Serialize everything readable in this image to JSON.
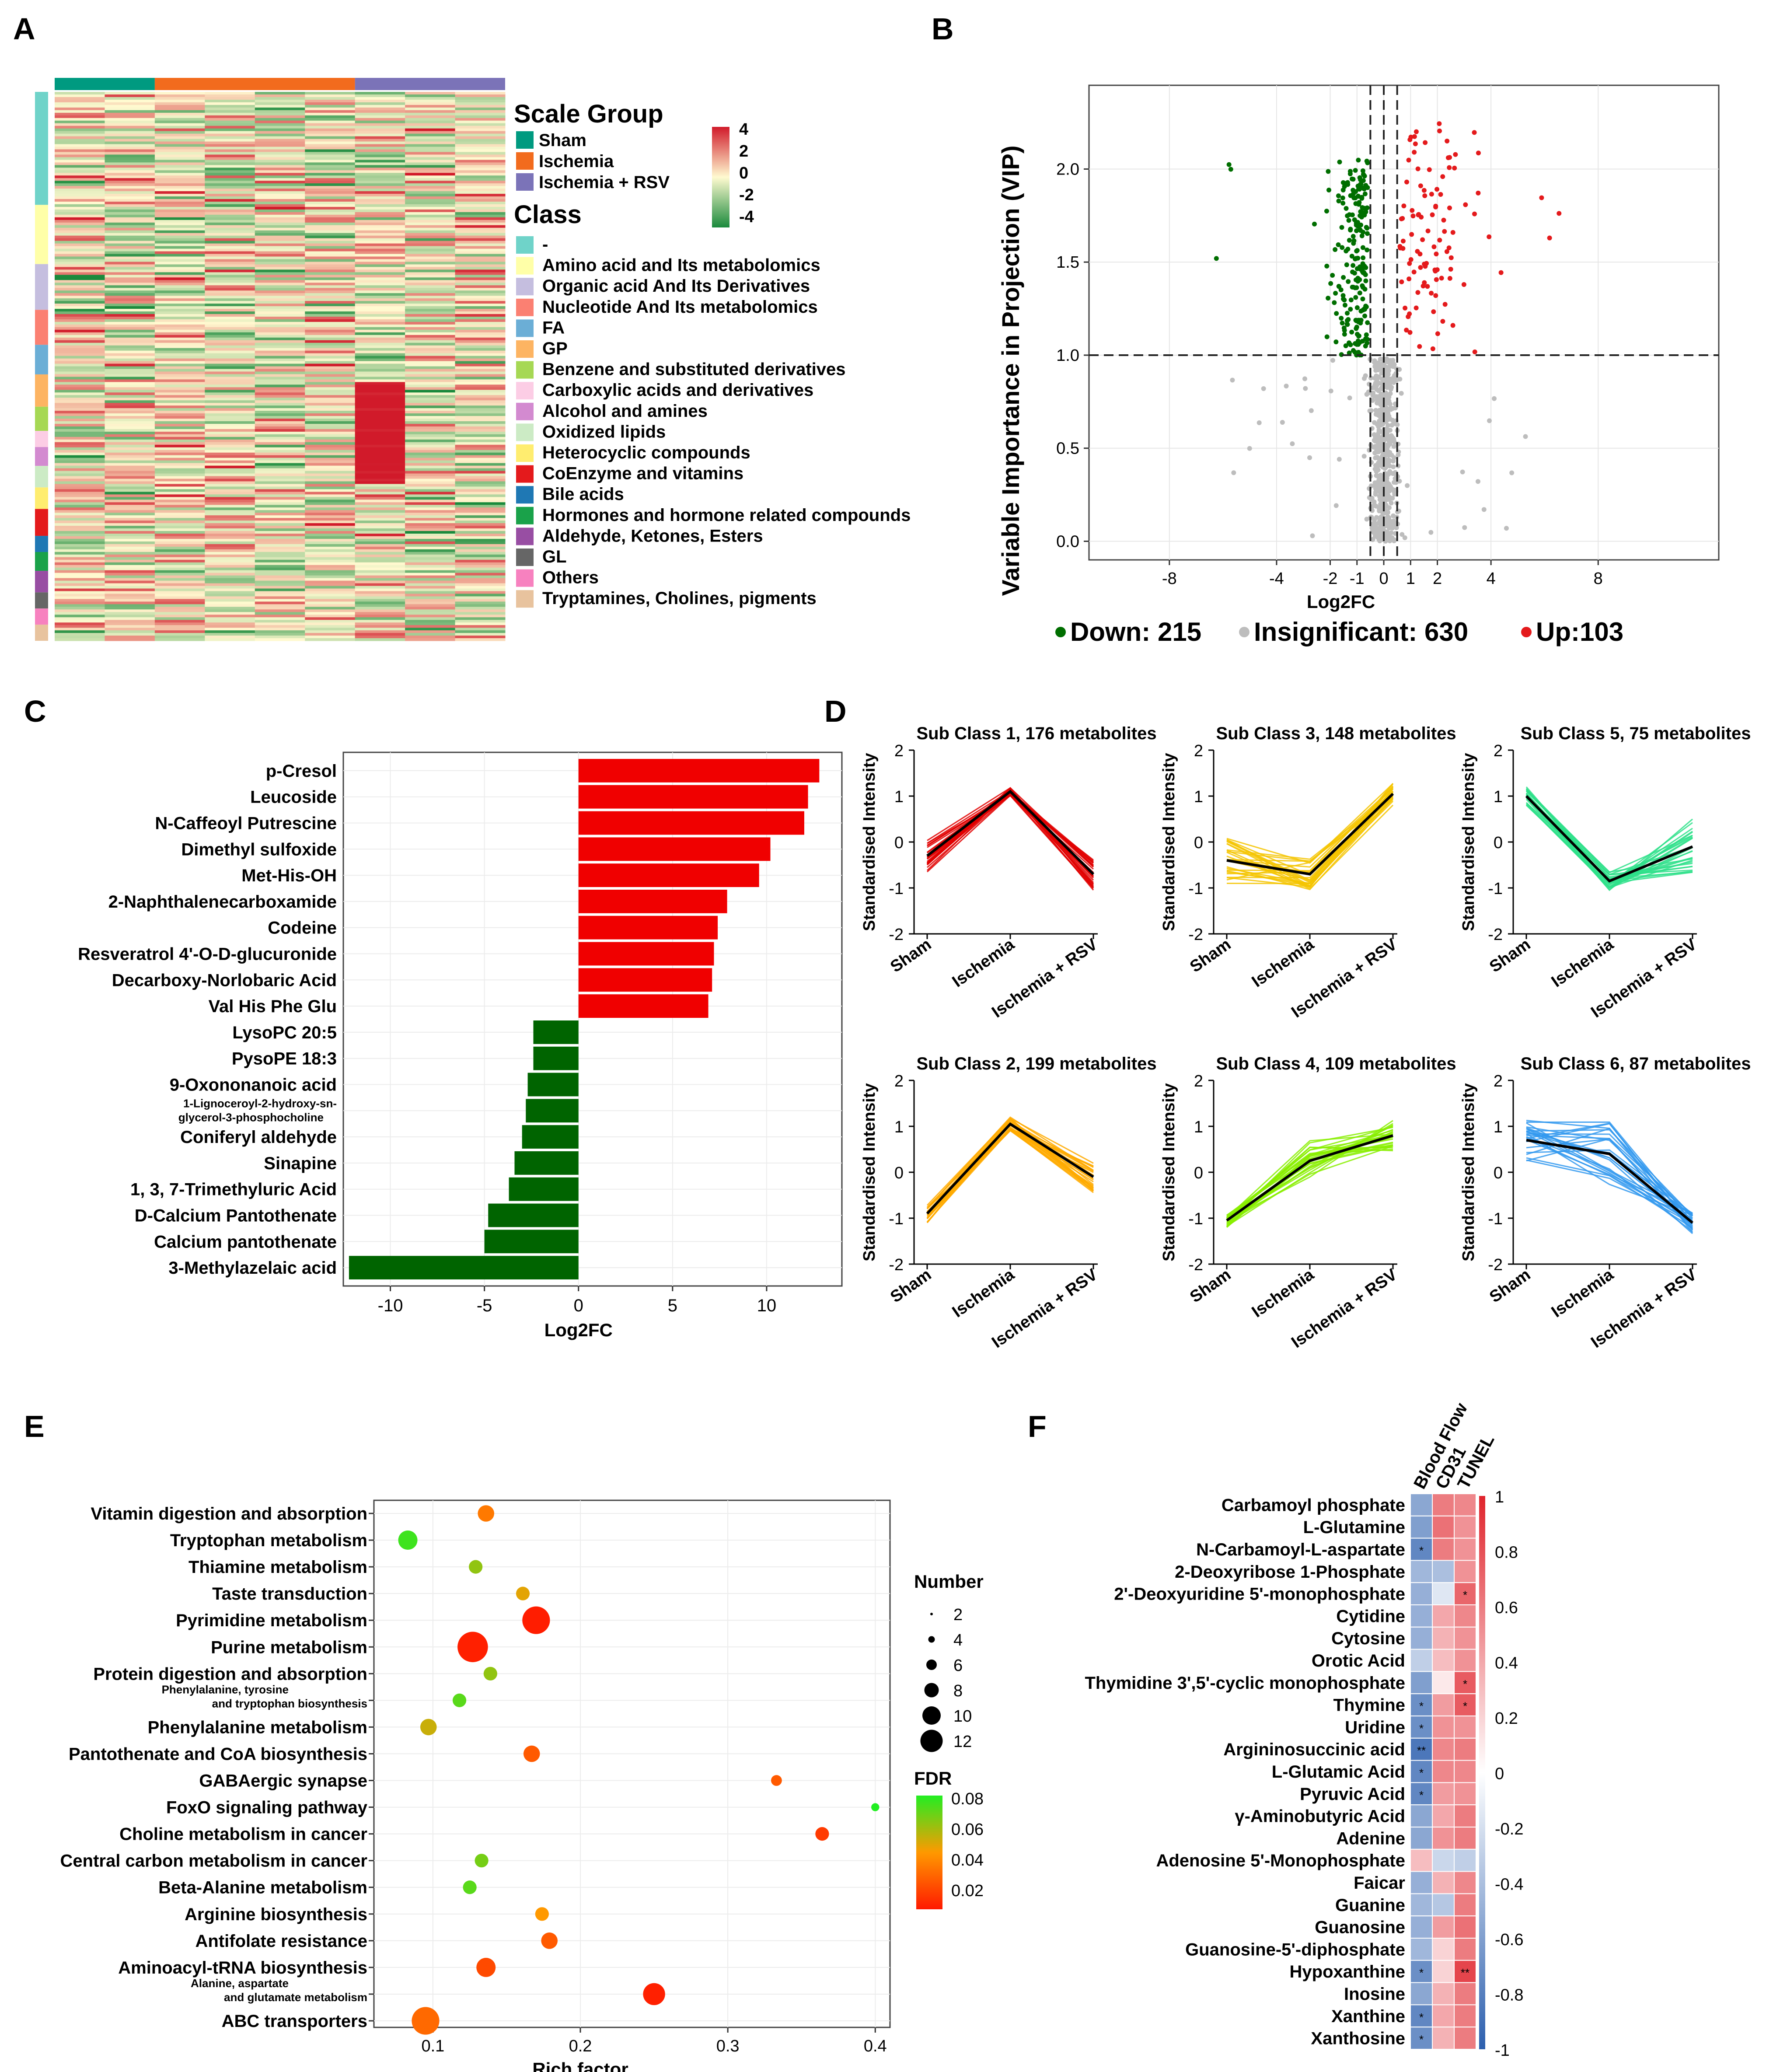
{
  "panel_letters": [
    "A",
    "B",
    "C",
    "D",
    "E",
    "F"
  ],
  "chart_data": [
    {
      "panel": "A",
      "type": "heatmap",
      "title": "",
      "group_legend_title": "Scale Group",
      "groups": [
        {
          "name": "Sham",
          "color": "#009a80"
        },
        {
          "name": "Ischemia",
          "color": "#f26b1d"
        },
        {
          "name": "Ischemia + RSV",
          "color": "#7b73b8"
        }
      ],
      "columns_per_group": [
        2,
        4,
        3
      ],
      "scale_title": "",
      "scale_ticks": [
        "4",
        "2",
        "0",
        "-2",
        "-4"
      ],
      "scale_range": [
        -4,
        4
      ],
      "class_legend_title": "Class",
      "classes": [
        {
          "name": "-",
          "color": "#6fd3c9"
        },
        {
          "name": "Amino acid and Its metabolomics",
          "color": "#ffffa8"
        },
        {
          "name": "Organic acid And Its Derivatives",
          "color": "#c5bedf"
        },
        {
          "name": "Nucleotide And Its metabolomics",
          "color": "#fb8072"
        },
        {
          "name": "FA",
          "color": "#6baed6"
        },
        {
          "name": "GP",
          "color": "#fdb462"
        },
        {
          "name": "Benzene and substituted derivatives",
          "color": "#a6d854"
        },
        {
          "name": "Carboxylic acids and derivatives",
          "color": "#fccde5"
        },
        {
          "name": "Alcohol and amines",
          "color": "#d38ad0"
        },
        {
          "name": "Oxidized lipids",
          "color": "#ccebc5"
        },
        {
          "name": "Heterocyclic compounds",
          "color": "#ffed6f"
        },
        {
          "name": "CoEnzyme and vitamins",
          "color": "#e41a1c"
        },
        {
          "name": "Bile acids",
          "color": "#1f78b4"
        },
        {
          "name": "Hormones and hormone related compounds",
          "color": "#1aa24a"
        },
        {
          "name": "Aldehyde, Ketones, Esters",
          "color": "#984ea3"
        },
        {
          "name": "GL",
          "color": "#666666"
        },
        {
          "name": "Others",
          "color": "#f781bf"
        },
        {
          "name": "Tryptamines, Cholines, pigments",
          "color": "#e8c39e"
        }
      ]
    },
    {
      "panel": "B",
      "type": "scatter",
      "title": "",
      "xlabel": "Log2FC",
      "ylabel": "Variable Importance in Projection (VIP)",
      "xticks": [
        "-8",
        "-4",
        "-2",
        "-1",
        "0",
        "1",
        "2",
        "4",
        "8"
      ],
      "yticks": [
        "0.0",
        "0.5",
        "1.0",
        "1.5",
        "2.0"
      ],
      "ylim": [
        -0.1,
        2.45
      ],
      "vip_threshold": 1.0,
      "fc_thresholds": [
        -0.5,
        0,
        0.5
      ],
      "legend": [
        {
          "label": "Down: 215",
          "color": "#006e00"
        },
        {
          "label": "Insignificant: 630",
          "color": "#bdbdbd"
        },
        {
          "label": "Up:103",
          "color": "#e41a1c"
        }
      ],
      "series": [
        {
          "name": "Down",
          "count": 215
        },
        {
          "name": "Insignificant",
          "count": 630
        },
        {
          "name": "Up",
          "count": 103
        }
      ]
    },
    {
      "panel": "C",
      "type": "bar",
      "orientation": "horizontal",
      "title": "",
      "xlabel": "Log2FC",
      "ylabel": "",
      "xlim": [
        -12.5,
        14
      ],
      "xticks": [
        "-10",
        "-5",
        "0",
        "5",
        "10"
      ],
      "categories": [
        "p-Cresol",
        "Leucoside",
        "N-Caffeoyl Putrescine",
        "Dimethyl sulfoxide",
        "Met-His-OH",
        "2-Naphthalenecarboxamide",
        "Codeine",
        "Resveratrol 4'-O-D-glucuronide",
        "Decarboxy-Norlobaric Acid",
        "Val His Phe Glu",
        "LysoPC 20:5",
        "PysoPE 18:3",
        "9-Oxononanoic acid",
        "1-Lignoceroyl-2-hydroxy-sn-glycerol-3-phosphocholine",
        "Coniferyl aldehyde",
        "Sinapine",
        "1, 3, 7-Trimethyluric Acid",
        "D-Calcium Pantothenate",
        "Calcium pantothenate",
        "3-Methylazelaic acid"
      ],
      "values": [
        12.8,
        12.2,
        12.0,
        10.2,
        9.6,
        7.9,
        7.4,
        7.2,
        7.1,
        6.9,
        -2.4,
        -2.4,
        -2.7,
        -2.8,
        -3.0,
        -3.4,
        -3.7,
        -4.8,
        -5.0,
        -12.2
      ],
      "colors": {
        "up": "#f00000",
        "down": "#006400"
      }
    },
    {
      "panel": "D",
      "type": "line",
      "title": "",
      "xlabel": "",
      "ylabel": "Standardised Intensity",
      "categories": [
        "Sham",
        "Ischemia",
        "Ischemia + RSV"
      ],
      "ylim": [
        -2,
        2
      ],
      "yticks": [
        "-2",
        "-1",
        "0",
        "1",
        "2"
      ],
      "subplots": [
        {
          "title": "Sub Class 1, 176 metabolites",
          "mean": [
            -0.3,
            1.1,
            -0.7
          ],
          "color": "#e00000",
          "spread": [
            0.35,
            0.1,
            0.35
          ]
        },
        {
          "title": "Sub Class 3, 148 metabolites",
          "mean": [
            -0.4,
            -0.7,
            1.05
          ],
          "color": "#f5c400",
          "spread": [
            0.5,
            0.35,
            0.25
          ]
        },
        {
          "title": "Sub Class 5, 75 metabolites",
          "mean": [
            1.0,
            -0.85,
            -0.1
          ],
          "color": "#2ee08a",
          "spread": [
            0.2,
            0.2,
            0.6
          ]
        },
        {
          "title": "Sub Class 2, 199 metabolites",
          "mean": [
            -0.9,
            1.05,
            -0.1
          ],
          "color": "#ffaa00",
          "spread": [
            0.2,
            0.15,
            0.35
          ]
        },
        {
          "title": "Sub Class 4, 109 metabolites",
          "mean": [
            -1.05,
            0.25,
            0.8
          ],
          "color": "#88ee00",
          "spread": [
            0.15,
            0.45,
            0.35
          ]
        },
        {
          "title": "Sub Class 6, 87 metabolites",
          "mean": [
            0.7,
            0.4,
            -1.1
          ],
          "color": "#3399ee",
          "spread": [
            0.45,
            0.7,
            0.25
          ]
        }
      ]
    },
    {
      "panel": "E",
      "type": "scatter",
      "title": "",
      "xlabel": "Rich factor",
      "ylabel": "",
      "xlim": [
        0.06,
        0.41
      ],
      "xticks": [
        "0.1",
        "0.2",
        "0.3",
        "0.4"
      ],
      "categories": [
        "Vitamin digestion and absorption",
        "Tryptophan metabolism",
        "Thiamine metabolism",
        "Taste transduction",
        "Pyrimidine metabolism",
        "Purine metabolism",
        "Protein digestion and absorption",
        "Phenylalanine, tyrosine and tryptophan biosynthesis",
        "Phenylalanine metabolism",
        "Pantothenate and CoA biosynthesis",
        "GABAergic synapse",
        "FoxO signaling pathway",
        "Choline metabolism in cancer",
        "Central carbon metabolism in cancer",
        "Beta-Alanine metabolism",
        "Arginine biosynthesis",
        "Antifolate resistance",
        "Aminoacyl-tRNA biosynthesis",
        "Alanine, aspartate and glutamate metabolism",
        "ABC transporters"
      ],
      "x": [
        0.136,
        0.083,
        0.129,
        0.161,
        0.17,
        0.127,
        0.139,
        0.118,
        0.097,
        0.167,
        0.333,
        0.4,
        0.364,
        0.133,
        0.125,
        0.174,
        0.179,
        0.136,
        0.25,
        0.095
      ],
      "number": [
        4,
        5,
        3,
        3,
        8,
        9,
        3,
        3,
        4,
        4,
        2,
        1,
        3,
        3,
        3,
        3,
        4,
        5,
        6,
        8
      ],
      "fdr": [
        0.03,
        0.075,
        0.06,
        0.045,
        0.001,
        0.002,
        0.06,
        0.07,
        0.05,
        0.02,
        0.02,
        0.08,
        0.01,
        0.065,
        0.07,
        0.04,
        0.02,
        0.015,
        0.002,
        0.025
      ],
      "size_legend_title": "Number",
      "size_legend": [
        "2",
        "4",
        "6",
        "8",
        "10",
        "12"
      ],
      "color_legend_title": "FDR",
      "color_legend_ticks": [
        "0.08",
        "0.06",
        "0.04",
        "0.02"
      ]
    },
    {
      "panel": "F",
      "type": "heatmap",
      "title": "",
      "columns": [
        "Blood Flow",
        "CD31",
        "TUNEL"
      ],
      "rows": [
        "Carbamoyl phosphate",
        "L-Glutamine",
        "N-Carbamoyl-L-aspartate",
        "2-Deoxyribose 1-Phosphate",
        "2'-Deoxyuridine 5'-monophosphate",
        "Cytidine",
        "Cytosine",
        "Orotic Acid",
        "Thymidine 3',5'-cyclic monophosphate",
        "Thymine",
        "Uridine",
        "Argininosuccinic acid",
        "L-Glutamic Acid",
        "Pyruvic Acid",
        "γ-Aminobutyric Acid",
        "Adenine",
        "Adenosine 5'-Monophosphate",
        "Faicar",
        "Guanine",
        "Guanosine",
        "Guanosine-5'-diphosphate",
        "Hypoxanthine",
        "Inosine",
        "Xanthine",
        "Xanthosine"
      ],
      "values": [
        [
          -0.55,
          0.6,
          0.55
        ],
        [
          -0.6,
          0.65,
          0.5
        ],
        [
          -0.75,
          0.6,
          0.5
        ],
        [
          -0.45,
          -0.4,
          0.5
        ],
        [
          -0.5,
          -0.15,
          0.7
        ],
        [
          -0.5,
          0.4,
          0.55
        ],
        [
          -0.5,
          0.35,
          0.5
        ],
        [
          -0.3,
          0.3,
          0.5
        ],
        [
          -0.6,
          0.1,
          0.75
        ],
        [
          -0.7,
          0.45,
          0.75
        ],
        [
          -0.7,
          0.5,
          0.5
        ],
        [
          -0.85,
          0.55,
          0.6
        ],
        [
          -0.75,
          0.55,
          0.55
        ],
        [
          -0.75,
          0.45,
          0.5
        ],
        [
          -0.55,
          0.4,
          0.6
        ],
        [
          -0.55,
          0.5,
          0.6
        ],
        [
          0.3,
          -0.25,
          -0.3
        ],
        [
          -0.5,
          0.35,
          0.55
        ],
        [
          -0.45,
          -0.35,
          0.6
        ],
        [
          -0.5,
          0.45,
          0.65
        ],
        [
          -0.45,
          0.2,
          0.6
        ],
        [
          -0.7,
          0.2,
          0.85
        ],
        [
          -0.55,
          0.35,
          0.6
        ],
        [
          -0.75,
          0.4,
          0.6
        ],
        [
          -0.7,
          0.35,
          0.6
        ]
      ],
      "stars": [
        [
          "",
          "",
          ""
        ],
        [
          "",
          "",
          ""
        ],
        [
          "*",
          "",
          ""
        ],
        [
          "",
          "",
          ""
        ],
        [
          "",
          "",
          "*"
        ],
        [
          "",
          "",
          ""
        ],
        [
          "",
          "",
          ""
        ],
        [
          "",
          "",
          ""
        ],
        [
          "",
          "",
          "*"
        ],
        [
          "*",
          "",
          "*"
        ],
        [
          "*",
          "",
          ""
        ],
        [
          "**",
          "",
          ""
        ],
        [
          "*",
          "",
          ""
        ],
        [
          "*",
          "",
          ""
        ],
        [
          "",
          "",
          ""
        ],
        [
          "",
          "",
          ""
        ],
        [
          "",
          "",
          ""
        ],
        [
          "",
          "",
          ""
        ],
        [
          "",
          "",
          ""
        ],
        [
          "",
          "",
          ""
        ],
        [
          "",
          "",
          ""
        ],
        [
          "*",
          "",
          "**"
        ],
        [
          "",
          "",
          ""
        ],
        [
          "*",
          "",
          ""
        ],
        [
          "*",
          "",
          ""
        ]
      ],
      "scale_ticks": [
        "1",
        "0.8",
        "0.6",
        "0.4",
        "0.2",
        "0",
        "-0.2",
        "-0.4",
        "-0.6",
        "-0.8",
        "-1"
      ],
      "scale_range": [
        -1,
        1
      ]
    }
  ]
}
